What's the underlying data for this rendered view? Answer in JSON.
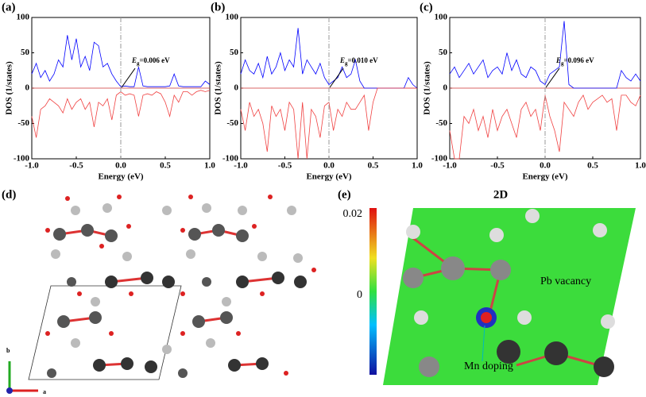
{
  "chart_data": [
    {
      "type": "line",
      "panel_label": "(a)",
      "xlabel": "Energy (eV)",
      "ylabel": "DOS (1/states)",
      "xlim": [
        -1,
        1
      ],
      "ylim": [
        -100,
        100
      ],
      "xticks": [
        {
          "value": -1,
          "label": "-1.0"
        },
        {
          "value": -0.5,
          "label": "-0.5"
        },
        {
          "value": 0,
          "label": "0.0"
        },
        {
          "value": 0.5,
          "label": "0.5"
        },
        {
          "value": 1,
          "label": "1.0"
        }
      ],
      "yticks": [
        -100,
        -50,
        0,
        50,
        100
      ],
      "vline": 0,
      "annotation": {
        "symbol": "E",
        "subscript": "g",
        "text": "=0.006 eV"
      },
      "x": [
        -1,
        -0.95,
        -0.9,
        -0.85,
        -0.8,
        -0.75,
        -0.7,
        -0.65,
        -0.6,
        -0.55,
        -0.5,
        -0.45,
        -0.4,
        -0.35,
        -0.3,
        -0.25,
        -0.2,
        -0.15,
        -0.1,
        -0.05,
        0,
        0.05,
        0.1,
        0.15,
        0.2,
        0.25,
        0.3,
        0.35,
        0.4,
        0.45,
        0.5,
        0.55,
        0.6,
        0.65,
        0.7,
        0.75,
        0.8,
        0.85,
        0.9,
        0.95,
        1
      ],
      "series": [
        {
          "color": "#0000ff",
          "values": [
            20,
            35,
            15,
            25,
            10,
            20,
            40,
            30,
            75,
            40,
            70,
            30,
            45,
            25,
            65,
            60,
            30,
            35,
            20,
            10,
            2,
            3,
            2,
            2,
            30,
            3,
            2,
            2,
            2,
            2,
            2,
            3,
            20,
            3,
            2,
            2,
            2,
            2,
            2,
            10,
            5
          ]
        },
        {
          "color": "#f04040",
          "values": [
            -40,
            -70,
            -30,
            -25,
            -15,
            -20,
            -25,
            -35,
            -15,
            -30,
            -20,
            -15,
            -30,
            -20,
            -55,
            -20,
            -25,
            -15,
            -45,
            -10,
            -5,
            -10,
            -8,
            -10,
            -40,
            -10,
            -8,
            -10,
            -5,
            -8,
            -20,
            -40,
            -10,
            -20,
            -5,
            -5,
            -10,
            -5,
            -3,
            -5,
            -3
          ]
        }
      ]
    },
    {
      "type": "line",
      "panel_label": "(b)",
      "xlabel": "Energy (eV)",
      "ylabel": "DOS (1/states)",
      "xlim": [
        -1,
        1
      ],
      "ylim": [
        -100,
        100
      ],
      "xticks": [
        {
          "value": -1,
          "label": "-1.0"
        },
        {
          "value": -0.5,
          "label": "-0.5"
        },
        {
          "value": 0,
          "label": "0.0"
        },
        {
          "value": 0.5,
          "label": "0.5"
        },
        {
          "value": 1,
          "label": "1.0"
        }
      ],
      "yticks": [
        -100,
        -50,
        0,
        50,
        100
      ],
      "vline": 0,
      "annotation": {
        "symbol": "E",
        "subscript": "g",
        "text": "=0.010 eV"
      },
      "x": [
        -1,
        -0.95,
        -0.9,
        -0.85,
        -0.8,
        -0.75,
        -0.7,
        -0.65,
        -0.6,
        -0.55,
        -0.5,
        -0.45,
        -0.4,
        -0.35,
        -0.3,
        -0.25,
        -0.2,
        -0.15,
        -0.1,
        -0.05,
        0,
        0.05,
        0.1,
        0.15,
        0.2,
        0.25,
        0.3,
        0.35,
        0.4,
        0.45,
        0.5,
        0.55,
        0.6,
        0.65,
        0.7,
        0.75,
        0.8,
        0.85,
        0.9,
        0.95,
        1
      ],
      "series": [
        {
          "color": "#0000ff",
          "values": [
            20,
            40,
            25,
            20,
            35,
            15,
            45,
            20,
            30,
            50,
            25,
            40,
            30,
            85,
            20,
            40,
            30,
            20,
            35,
            15,
            5,
            10,
            15,
            30,
            15,
            20,
            40,
            10,
            0,
            0,
            0,
            0,
            0,
            0,
            0,
            0,
            0,
            0,
            15,
            5,
            0
          ]
        },
        {
          "color": "#f04040",
          "values": [
            -30,
            -60,
            -20,
            -40,
            -30,
            -50,
            -90,
            -25,
            -40,
            -30,
            -60,
            -20,
            -30,
            -100,
            -20,
            -100,
            -30,
            -40,
            -70,
            -25,
            -20,
            -60,
            -30,
            -40,
            -20,
            -30,
            -30,
            -20,
            -10,
            -60,
            -20,
            0,
            0,
            0,
            0,
            0,
            0,
            0,
            0,
            0,
            0
          ]
        }
      ]
    },
    {
      "type": "line",
      "panel_label": "(c)",
      "xlabel": "Energy (eV)",
      "ylabel": "DOS (1/states)",
      "xlim": [
        -1,
        1
      ],
      "ylim": [
        -100,
        100
      ],
      "xticks": [
        {
          "value": -1,
          "label": "-1.0"
        },
        {
          "value": -0.5,
          "label": "-0.5"
        },
        {
          "value": 0,
          "label": "0.0"
        },
        {
          "value": 0.5,
          "label": "0.5"
        },
        {
          "value": 1,
          "label": "1.0"
        }
      ],
      "yticks": [
        -100,
        -50,
        0,
        50,
        100
      ],
      "vline": 0,
      "annotation": {
        "symbol": "E",
        "subscript": "g",
        "text": "=0.096 eV"
      },
      "x": [
        -1,
        -0.95,
        -0.9,
        -0.85,
        -0.8,
        -0.75,
        -0.7,
        -0.65,
        -0.6,
        -0.55,
        -0.5,
        -0.45,
        -0.4,
        -0.35,
        -0.3,
        -0.25,
        -0.2,
        -0.15,
        -0.1,
        -0.05,
        0,
        0.05,
        0.1,
        0.15,
        0.2,
        0.25,
        0.3,
        0.35,
        0.4,
        0.45,
        0.5,
        0.55,
        0.6,
        0.65,
        0.7,
        0.75,
        0.8,
        0.85,
        0.9,
        0.95,
        1
      ],
      "series": [
        {
          "color": "#0000ff",
          "values": [
            20,
            30,
            15,
            25,
            35,
            20,
            30,
            40,
            15,
            25,
            30,
            20,
            50,
            25,
            40,
            20,
            15,
            30,
            25,
            10,
            5,
            20,
            25,
            30,
            95,
            5,
            0,
            0,
            0,
            0,
            0,
            0,
            0,
            0,
            0,
            0,
            25,
            15,
            10,
            20,
            10
          ]
        },
        {
          "color": "#f04040",
          "values": [
            -60,
            -100,
            -100,
            -40,
            -50,
            -30,
            -60,
            -40,
            -70,
            -30,
            -60,
            -40,
            -30,
            -50,
            -70,
            -30,
            -20,
            -40,
            -30,
            -60,
            -10,
            -40,
            -60,
            -90,
            -20,
            -30,
            -40,
            -20,
            -10,
            -30,
            -20,
            -15,
            -10,
            -20,
            -15,
            -60,
            -10,
            -10,
            -20,
            -25,
            -10
          ]
        }
      ]
    }
  ],
  "structures": [
    {
      "label": "(d)",
      "axis_a": "a",
      "axis_b": "b"
    },
    {
      "label": "(e)",
      "title": "2D",
      "colorbar_top": "0.02",
      "colorbar_mid": "0",
      "vacancy": "Pb vacancy",
      "doping": "Mn doping"
    }
  ]
}
